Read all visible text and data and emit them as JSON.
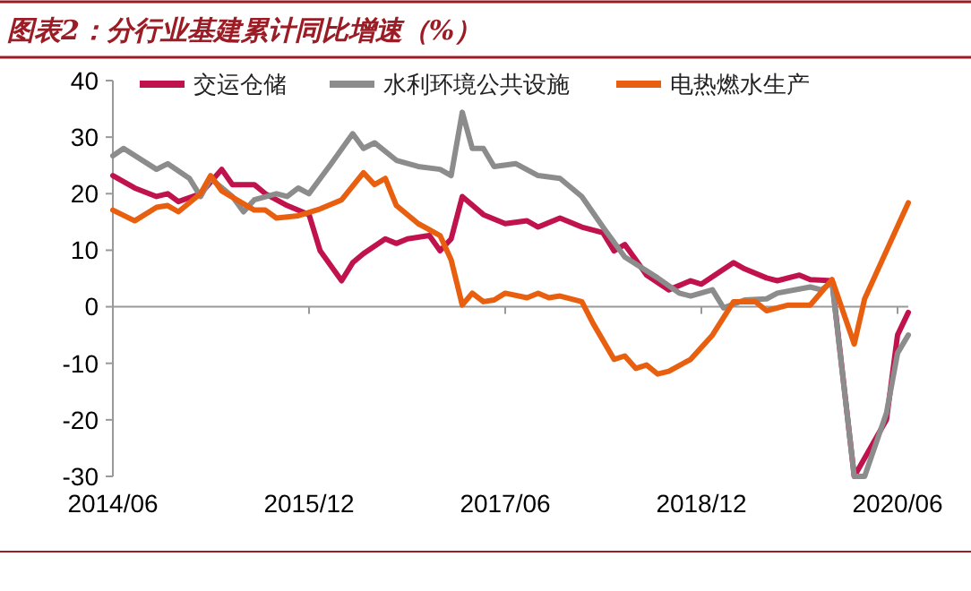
{
  "chart_data": {
    "type": "line",
    "title": "图表2：分行业基建累计同比增速（%）",
    "xlim": [
      "2014-06",
      "2020-07"
    ],
    "xticks": [
      {
        "value": "2014-06",
        "label": "2014/06"
      },
      {
        "value": "2015-12",
        "label": "2015/12"
      },
      {
        "value": "2017-06",
        "label": "2017/06"
      },
      {
        "value": "2018-12",
        "label": "2018/12"
      },
      {
        "value": "2020-06",
        "label": "2020/06"
      }
    ],
    "ylim": [
      -30,
      40
    ],
    "yticks": [
      -30,
      -20,
      -10,
      0,
      10,
      20,
      30,
      40
    ],
    "legend": "top",
    "marker": "none",
    "line_style": "solid",
    "series": [
      {
        "name": "交运仓储",
        "color": "#c0134e",
        "x": [
          "2014-06",
          "2014-08",
          "2014-10",
          "2014-11",
          "2014-12",
          "2015-02",
          "2015-04",
          "2015-05",
          "2015-07",
          "2015-08",
          "2015-10",
          "2015-12",
          "2016-01",
          "2016-03",
          "2016-04",
          "2016-05",
          "2016-07",
          "2016-08",
          "2016-09",
          "2016-11",
          "2016-12",
          "2017-01",
          "2017-02",
          "2017-04",
          "2017-06",
          "2017-08",
          "2017-09",
          "2017-11",
          "2018-01",
          "2018-03",
          "2018-04",
          "2018-05",
          "2018-06",
          "2018-07",
          "2018-09",
          "2018-11",
          "2018-12",
          "2019-03",
          "2019-04",
          "2019-06",
          "2019-07",
          "2019-09",
          "2019-10",
          "2019-12",
          "2020-02",
          "2020-05",
          "2020-06",
          "2020-07"
        ],
        "values": [
          23.2,
          21,
          19.5,
          20,
          18.6,
          20,
          24.3,
          21.6,
          21.6,
          20,
          17.9,
          16.3,
          9.9,
          4.6,
          7.8,
          9.4,
          12,
          11.2,
          12,
          12.6,
          9.9,
          12,
          19.5,
          16.3,
          14.7,
          15.2,
          14.1,
          15.7,
          14.1,
          13.1,
          9.9,
          11,
          8.3,
          5.6,
          3,
          4.6,
          4,
          7.8,
          6.7,
          5.1,
          4.6,
          5.6,
          4.8,
          4.6,
          -30,
          -20,
          -5,
          -1
        ]
      },
      {
        "name": "水利环境公共设施",
        "color": "#8c8c8c",
        "x": [
          "2014-06",
          "2014-07",
          "2014-10",
          "2014-11",
          "2015-01",
          "2015-02",
          "2015-03",
          "2015-05",
          "2015-06",
          "2015-07",
          "2015-09",
          "2015-10",
          "2015-11",
          "2015-12",
          "2016-02",
          "2016-04",
          "2016-05",
          "2016-06",
          "2016-08",
          "2016-10",
          "2016-12",
          "2017-01",
          "2017-02",
          "2017-03",
          "2017-04",
          "2017-05",
          "2017-07",
          "2017-09",
          "2017-11",
          "2018-01",
          "2018-03",
          "2018-05",
          "2018-08",
          "2018-10",
          "2018-11",
          "2019-01",
          "2019-02",
          "2019-04",
          "2019-06",
          "2019-07",
          "2019-10",
          "2019-11",
          "2019-12",
          "2020-02",
          "2020-03",
          "2020-05",
          "2020-06",
          "2020-07"
        ],
        "values": [
          26.7,
          28,
          24.3,
          25.3,
          22.7,
          19.5,
          22.7,
          19.5,
          16.8,
          18.9,
          20,
          19.5,
          21,
          20,
          25.3,
          30.6,
          28,
          29,
          25.9,
          24.8,
          24.3,
          23.2,
          34.4,
          28,
          28,
          24.8,
          25.3,
          23.2,
          22.7,
          19.5,
          14.1,
          8.8,
          5.1,
          2.4,
          1.9,
          3,
          -0.2,
          1.2,
          1.4,
          2.4,
          3.5,
          3,
          4.3,
          -30,
          -30,
          -18.8,
          -8.2,
          -5
        ]
      },
      {
        "name": "电热燃水生产",
        "color": "#e8600f",
        "x": [
          "2014-06",
          "2014-08",
          "2014-10",
          "2014-11",
          "2014-12",
          "2015-02",
          "2015-03",
          "2015-04",
          "2015-07",
          "2015-08",
          "2015-09",
          "2015-11",
          "2016-01",
          "2016-03",
          "2016-05",
          "2016-06",
          "2016-07",
          "2016-08",
          "2016-10",
          "2016-12",
          "2017-01",
          "2017-02",
          "2017-03",
          "2017-04",
          "2017-05",
          "2017-06",
          "2017-08",
          "2017-09",
          "2017-10",
          "2017-11",
          "2018-01",
          "2018-02",
          "2018-04",
          "2018-05",
          "2018-06",
          "2018-07",
          "2018-08",
          "2018-09",
          "2018-11",
          "2019-01",
          "2019-03",
          "2019-05",
          "2019-06",
          "2019-08",
          "2019-10",
          "2019-12",
          "2020-02",
          "2020-03",
          "2020-07"
        ],
        "values": [
          17.1,
          15.2,
          17.6,
          17.9,
          16.8,
          20,
          23.2,
          20.5,
          17.1,
          17.1,
          15.7,
          16.1,
          17.3,
          18.9,
          23.7,
          21.6,
          22.7,
          17.9,
          14.7,
          12.6,
          8.3,
          0.3,
          2.4,
          0.9,
          1.2,
          2.4,
          1.6,
          2.4,
          1.6,
          1.9,
          0.9,
          -2.9,
          -9.3,
          -8.7,
          -10.9,
          -10.3,
          -11.9,
          -11.4,
          -9.3,
          -5,
          0.9,
          0.9,
          -0.7,
          0.3,
          0.3,
          4.8,
          -6.6,
          1.4,
          18.4
        ]
      }
    ]
  }
}
